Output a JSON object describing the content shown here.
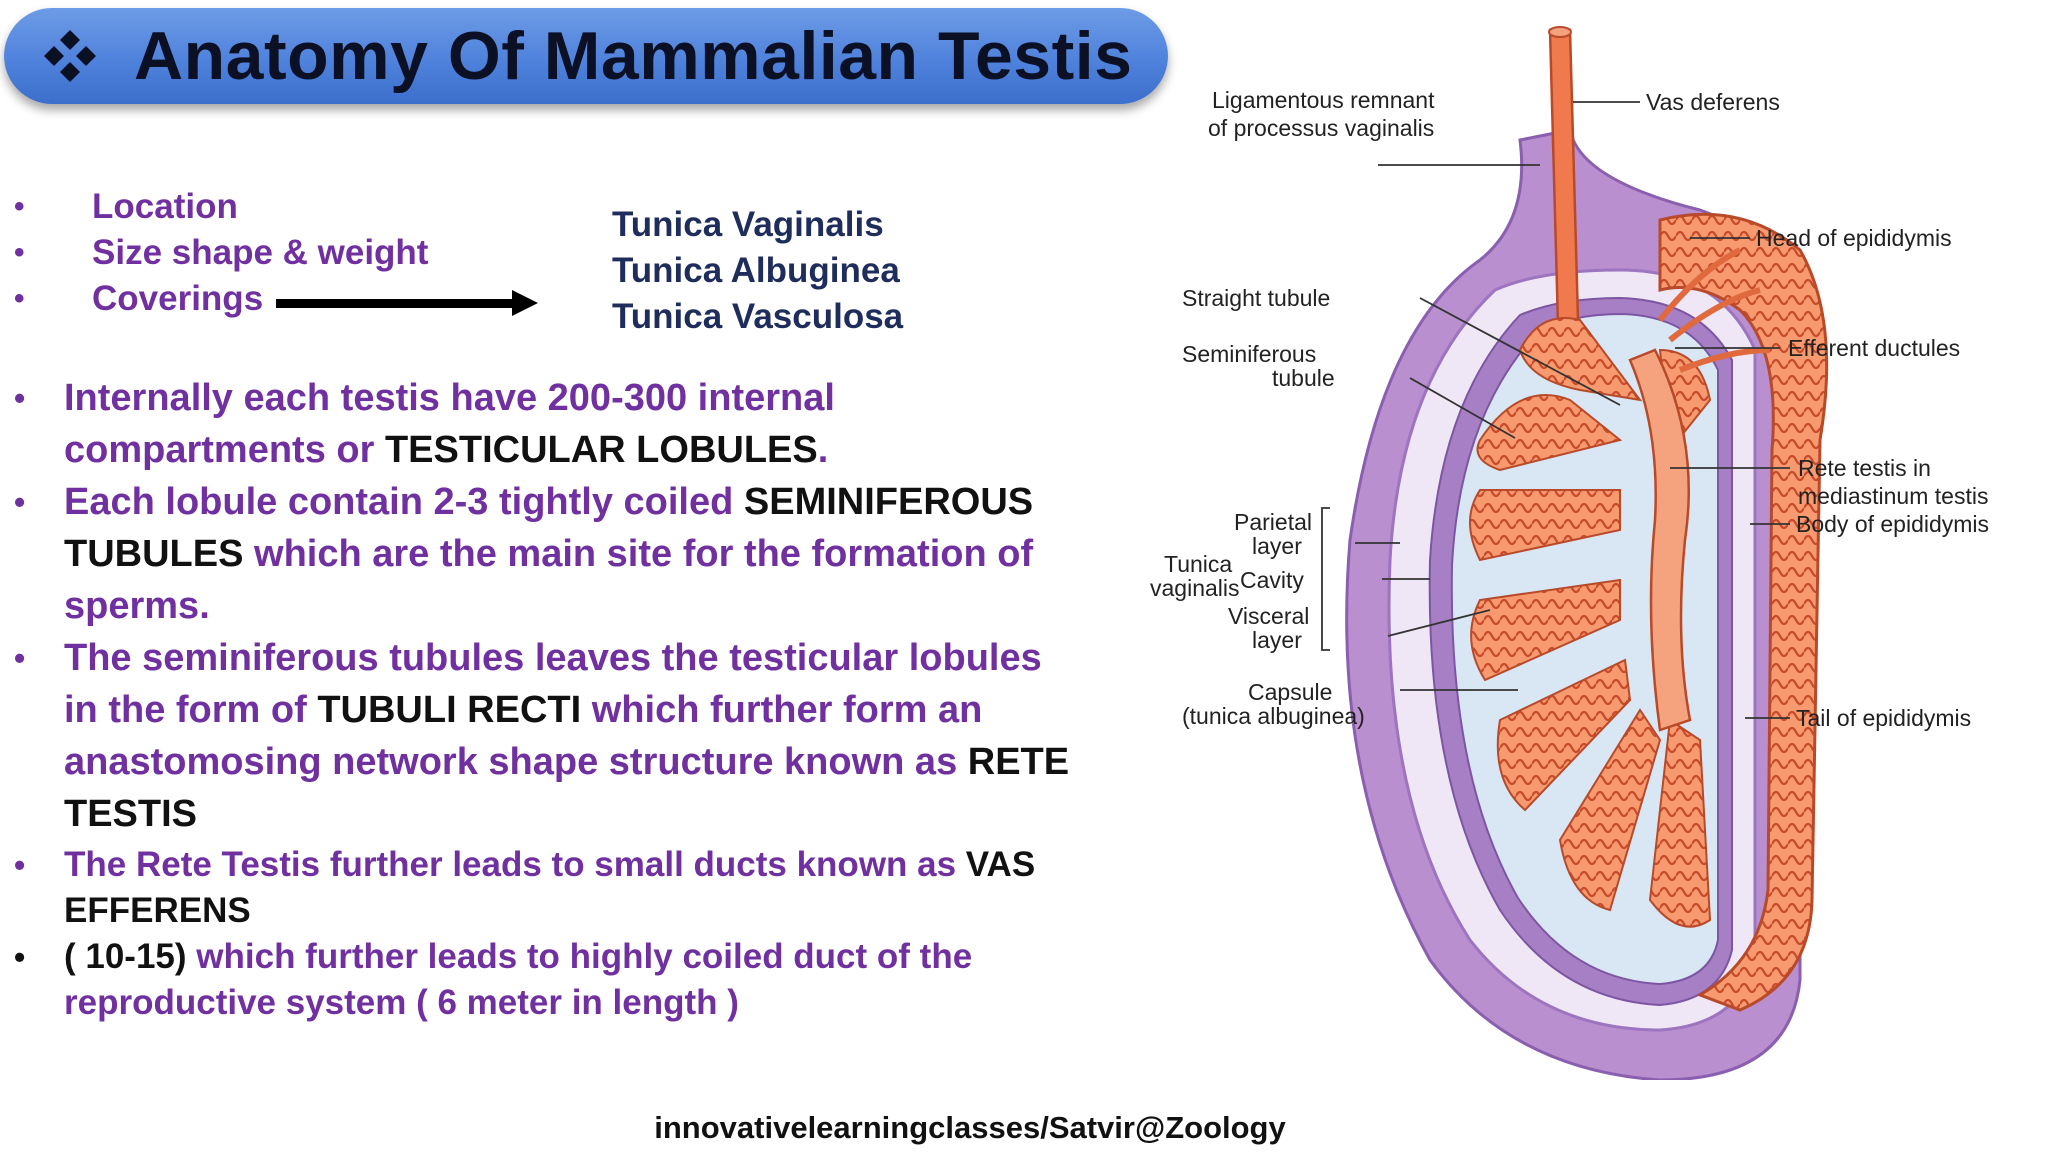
{
  "title": "Anatomy Of  Mammalian Testis",
  "topics": [
    "Location",
    "Size shape & weight",
    "Coverings"
  ],
  "coverings": [
    "Tunica Vaginalis",
    "Tunica Albuginea",
    "Tunica Vasculosa"
  ],
  "paragraphs": {
    "p1": {
      "a": "Internally each testis have 200-300 internal compartments or ",
      "b": "TESTICULAR LOBULES",
      "c": "."
    },
    "p2": {
      "a": "Each lobule contain  2-3 tightly coiled ",
      "b": "SEMINIFEROUS TUBULES",
      "c": " which are the main site for the formation of sperms."
    },
    "p3": {
      "a": "The seminiferous tubules  leaves the  testicular lobules in the form of ",
      "b": "TUBULI RECTI",
      "c": " which further form an anastomosing  network shape structure known as ",
      "d": "RETE TESTIS"
    },
    "p4": {
      "a": "The Rete Testis further leads to small ducts known as ",
      "b": "VAS EFFERENS"
    },
    "p5": {
      "a": "( 10-15)",
      "b": " which further leads to highly  coiled duct of the reproductive system ( 6 meter in length )"
    }
  },
  "footer": "innovativelearningclasses/Satvir@Zoology",
  "diagram_labels": {
    "ligamentous_1": "Ligamentous remnant",
    "ligamentous_2": "of processus vaginalis",
    "vas_deferens": "Vas deferens",
    "head_epididymis": "Head of epididymis",
    "straight_tubule": "Straight tubule",
    "seminiferous_1": "Seminiferous",
    "seminiferous_2": "tubule",
    "efferent": "Efferent ductules",
    "rete_1": "Rete testis in",
    "rete_2": "mediastinum testis",
    "body_epididymis": "Body of epididymis",
    "parietal_1": "Parietal",
    "parietal_2": "layer",
    "tunica_1": "Tunica",
    "tunica_2": "vaginalis",
    "cavity": "Cavity",
    "visceral_1": "Visceral",
    "visceral_2": "layer",
    "capsule_1": "Capsule",
    "capsule_2": "(tunica albuginea)",
    "tail_epididymis": "Tail of epididymis"
  },
  "colors": {
    "title_bar": "#4f82dc",
    "purple_text": "#7030a0",
    "navy_text": "#1f2d5c",
    "tubule": "#f28a5e",
    "tunica_outer": "#b98fcf",
    "cavity": "#d9e6f3"
  }
}
